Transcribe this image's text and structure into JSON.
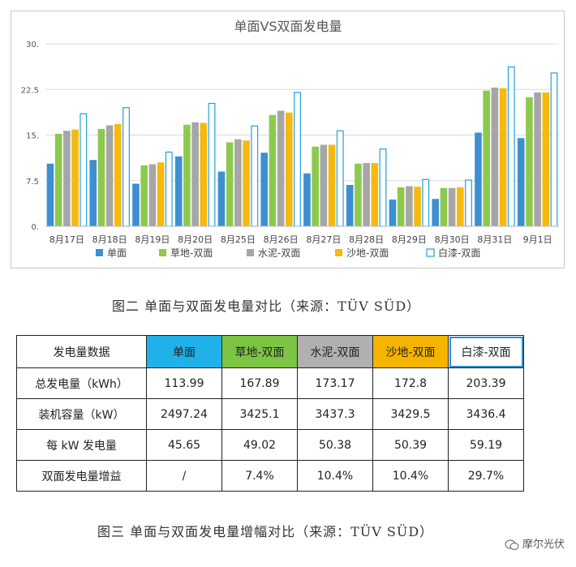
{
  "chart_data": {
    "type": "bar",
    "title": "单面VS双面发电量",
    "categories": [
      "8月17日",
      "8月18日",
      "8月19日",
      "8月20日",
      "8月25日",
      "8月26日",
      "8月27日",
      "8月28日",
      "8月29日",
      "8月30日",
      "8月31日",
      "9月1日"
    ],
    "ylim": [
      0,
      30
    ],
    "yticks": [
      0,
      7.5,
      15,
      22.5,
      30
    ],
    "ytick_labels": [
      "0.",
      "7.5",
      "15.",
      "22.5",
      "30."
    ],
    "grid": true,
    "legend_position": "bottom",
    "series": [
      {
        "name": "单面",
        "color": "#3d8fd1",
        "outline": false,
        "values": [
          10.3,
          10.9,
          7.0,
          11.5,
          9.0,
          12.1,
          8.7,
          6.8,
          4.4,
          4.5,
          15.4,
          14.5
        ]
      },
      {
        "name": "草地-双面",
        "color": "#8dc94e",
        "outline": false,
        "values": [
          15.2,
          16.0,
          10.0,
          16.7,
          13.8,
          18.3,
          13.1,
          10.3,
          6.4,
          6.3,
          22.3,
          21.2
        ]
      },
      {
        "name": "水泥-双面",
        "color": "#a6a6a6",
        "outline": false,
        "values": [
          15.7,
          16.6,
          10.2,
          17.1,
          14.3,
          19.0,
          13.4,
          10.4,
          6.6,
          6.3,
          22.8,
          22.0
        ]
      },
      {
        "name": "沙地-双面",
        "color": "#f5b90f",
        "outline": false,
        "values": [
          15.9,
          16.8,
          10.5,
          17.0,
          14.1,
          18.7,
          13.4,
          10.4,
          6.5,
          6.4,
          22.7,
          22.0
        ]
      },
      {
        "name": "白漆-双面",
        "color": "#21a1d9",
        "outline": true,
        "values": [
          18.5,
          19.5,
          12.2,
          20.2,
          16.5,
          22.0,
          15.7,
          12.7,
          7.7,
          7.6,
          26.2,
          25.2
        ]
      }
    ]
  },
  "captions": {
    "figure2": "图二 单面与双面发电量对比（来源：TÜV SÜD）",
    "figure3": "图三 单面与双面发电量增幅对比（来源：TÜV SÜD）"
  },
  "table": {
    "headers": [
      "发电量数据",
      "单面",
      "草地-双面",
      "水泥-双面",
      "沙地-双面",
      "白漆-双面"
    ],
    "rows": [
      [
        "总发电量（kWh）",
        "113.99",
        "167.89",
        "173.17",
        "172.8",
        "203.39"
      ],
      [
        "装机容量（kW）",
        "2497.24",
        "3425.1",
        "3437.3",
        "3429.5",
        "3436.4"
      ],
      [
        "每 kW 发电量",
        "45.65",
        "49.02",
        "50.38",
        "50.39",
        "59.19"
      ],
      [
        "双面发电量增益",
        "/",
        "7.4%",
        "10.4%",
        "10.4%",
        "29.7%"
      ]
    ]
  },
  "watermark": "摩尔光伏"
}
